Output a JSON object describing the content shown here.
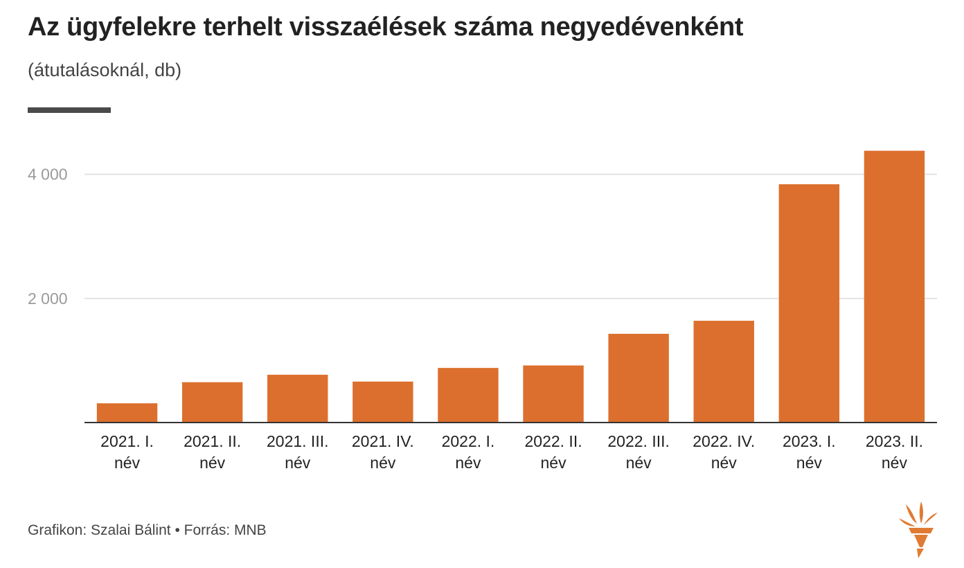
{
  "header": {
    "title": "Az ügyfelekre terhelt visszaélések száma negyedévenként",
    "subtitle": "(átutalásoknál, db)"
  },
  "footer": {
    "credit": "Grafikon: Szalai Bálint",
    "separator": "•",
    "source": "Forrás: MNB"
  },
  "colors": {
    "bar": "#DC6F2D",
    "grid": "#e3e3e3",
    "axis": "#333333",
    "accent_bar": "#4a4a4a"
  },
  "logo": {
    "icon": "torch-logo-icon"
  },
  "chart_data": {
    "type": "bar",
    "title": "Az ügyfelekre terhelt visszaélések száma negyedévenként",
    "subtitle": "(átutalásoknál, db)",
    "categories": [
      [
        "2021. I.",
        "név"
      ],
      [
        "2021. II.",
        "név"
      ],
      [
        "2021. III.",
        "név"
      ],
      [
        "2021. IV.",
        "név"
      ],
      [
        "2022. I.",
        "név"
      ],
      [
        "2022. II.",
        "név"
      ],
      [
        "2022. III.",
        "név"
      ],
      [
        "2022. IV.",
        "név"
      ],
      [
        "2023. I.",
        "név"
      ],
      [
        "2023. II.",
        "név"
      ]
    ],
    "values": [
      310,
      650,
      770,
      660,
      880,
      920,
      1430,
      1640,
      3840,
      4380
    ],
    "ylim": [
      0,
      4800
    ],
    "yticks": [
      2000,
      4000
    ],
    "ytick_labels": [
      "2 000",
      "4 000"
    ],
    "grid": true,
    "legend": "none"
  }
}
